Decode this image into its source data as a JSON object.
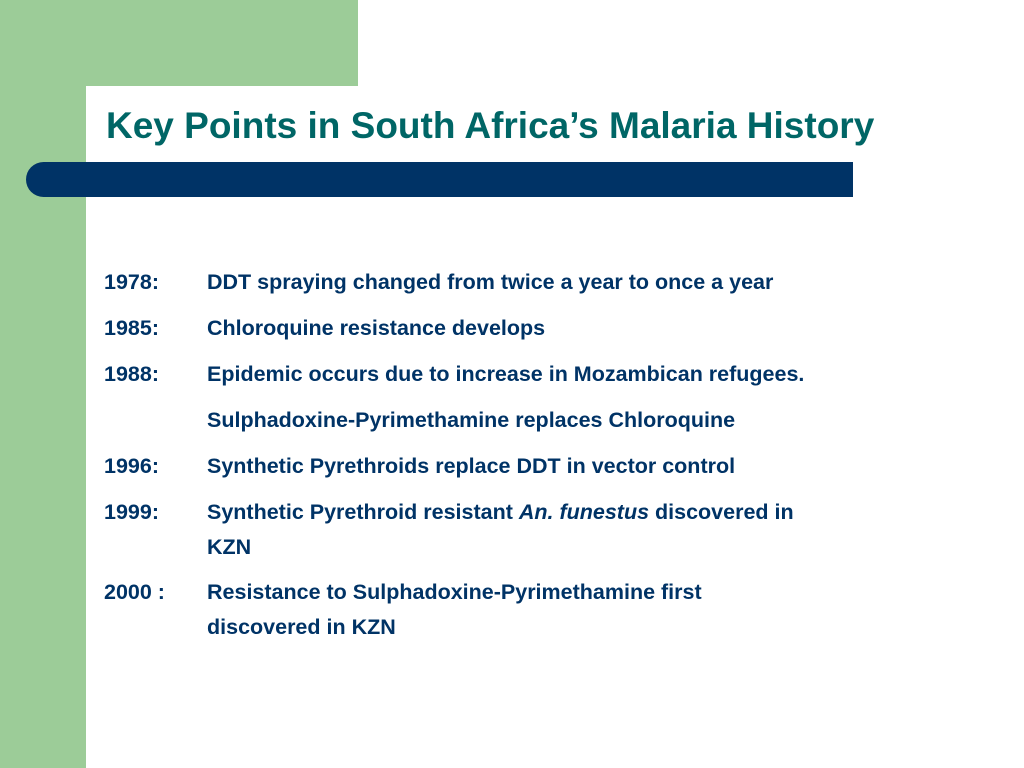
{
  "slide": {
    "title": "Key Points in South Africa’s Malaria History",
    "entries": [
      {
        "year": "1978:",
        "text": "DDT spraying changed from twice a year to once a year"
      },
      {
        "year": "1985:",
        "text": "Chloroquine resistance develops"
      },
      {
        "year": "1988:",
        "text": "Epidemic occurs due to increase in Mozambican refugees."
      },
      {
        "year": "",
        "text": "Sulphadoxine-Pyrimethamine replaces Chloroquine"
      },
      {
        "year": "1996:",
        "text": "Synthetic Pyrethroids replace DDT in vector control"
      },
      {
        "year": "1999:",
        "text_before": "Synthetic Pyrethroid resistant ",
        "text_italic": "An. funestus",
        "text_after": " discovered in",
        "text_line2": "KZN"
      },
      {
        "year": "2000 :",
        "text": "Resistance to Sulphadoxine-Pyrimethamine first",
        "text_line2": "discovered in KZN"
      }
    ]
  },
  "colors": {
    "green_accent": "#9ccc98",
    "title_bar": "#003366",
    "title_text": "#006666",
    "body_text": "#003366"
  }
}
